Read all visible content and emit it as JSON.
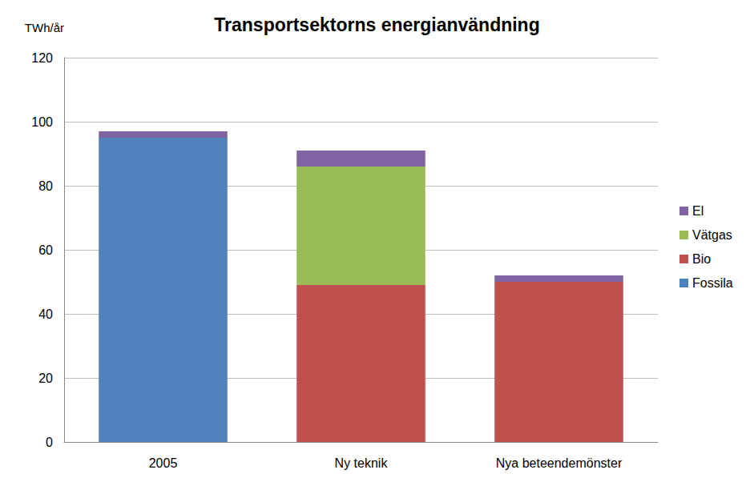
{
  "chart_data": {
    "type": "bar",
    "title": "Transportsektorns energianvändning",
    "y_label": "TWh/år",
    "categories": [
      "2005",
      "Ny teknik",
      "Nya beteendemönster"
    ],
    "series": [
      {
        "name": "Fossila",
        "color": "#4f81bd",
        "values": [
          95,
          0,
          0
        ]
      },
      {
        "name": "Bio",
        "color": "#c0504d",
        "values": [
          0,
          49,
          50
        ]
      },
      {
        "name": "Vätgas",
        "color": "#9bbb59",
        "values": [
          0,
          37,
          0
        ]
      },
      {
        "name": "El",
        "color": "#8064a2",
        "values": [
          2,
          5,
          2
        ]
      }
    ],
    "stacked": true,
    "ylim": [
      0,
      120
    ],
    "yticks": [
      0,
      20,
      40,
      60,
      80,
      100,
      120
    ],
    "grid": true,
    "legend": "right"
  }
}
